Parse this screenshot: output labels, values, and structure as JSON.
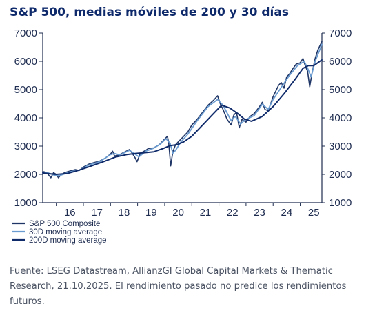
{
  "title": "S&P 500, medias móviles de 200 y 30 días",
  "source": "Fuente: LSEG Datastream, AllianzGI Global Capital Markets & Thematic Research, 21.10.2025. El rendimiento pasado no predice los rendimientos futuros.",
  "colors": {
    "title": "#0f2a6b",
    "composite": "#1f3566",
    "ma30": "#6a9bd0",
    "ma200": "#102b6a",
    "axis": "#1e2c50"
  },
  "chart_data": {
    "type": "line",
    "x_axis": {
      "range": [
        2015.5,
        2025.8
      ],
      "ticks": [
        2016,
        2017,
        2018,
        2019,
        2020,
        2021,
        2022,
        2023,
        2024,
        2025
      ],
      "tick_labels": [
        "16",
        "17",
        "18",
        "19",
        "20",
        "21",
        "22",
        "23",
        "24",
        "25"
      ]
    },
    "y_axis": {
      "range": [
        1000,
        7000
      ],
      "ticks": [
        1000,
        2000,
        3000,
        4000,
        5000,
        6000,
        7000
      ],
      "tick_labels": [
        "1000",
        "2000",
        "3000",
        "4000",
        "5000",
        "6000",
        "7000"
      ],
      "mirrored_right": true
    },
    "legend_position": "bottom-left",
    "series": [
      {
        "name": "S&P 500 Composite",
        "x": [
          2015.5,
          2015.6,
          2015.7,
          2015.8,
          2015.9,
          2016.0,
          2016.08,
          2016.15,
          2016.3,
          2016.5,
          2016.7,
          2016.85,
          2017.0,
          2017.2,
          2017.4,
          2017.6,
          2017.8,
          2018.0,
          2018.08,
          2018.15,
          2018.3,
          2018.5,
          2018.7,
          2018.8,
          2018.9,
          2018.98,
          2019.1,
          2019.3,
          2019.4,
          2019.6,
          2019.8,
          2020.0,
          2020.1,
          2020.15,
          2020.22,
          2020.3,
          2020.4,
          2020.5,
          2020.7,
          2020.85,
          2021.0,
          2021.2,
          2021.4,
          2021.6,
          2021.8,
          2021.95,
          2022.05,
          2022.15,
          2022.3,
          2022.45,
          2022.55,
          2022.65,
          2022.75,
          2022.85,
          2023.0,
          2023.15,
          2023.3,
          2023.5,
          2023.6,
          2023.7,
          2023.82,
          2024.0,
          2024.2,
          2024.3,
          2024.4,
          2024.5,
          2024.6,
          2024.7,
          2024.85,
          2025.0,
          2025.1,
          2025.2,
          2025.27,
          2025.35,
          2025.45,
          2025.55,
          2025.65,
          2025.8
        ],
        "values": [
          2100,
          2080,
          2000,
          1880,
          2060,
          2000,
          1880,
          1960,
          2060,
          2120,
          2170,
          2140,
          2260,
          2360,
          2420,
          2470,
          2570,
          2720,
          2820,
          2650,
          2680,
          2780,
          2880,
          2750,
          2600,
          2450,
          2750,
          2850,
          2920,
          2940,
          3050,
          3250,
          3350,
          3100,
          2300,
          2800,
          3050,
          3150,
          3350,
          3500,
          3750,
          3950,
          4200,
          4450,
          4620,
          4780,
          4500,
          4300,
          3950,
          3750,
          4100,
          4200,
          3650,
          3950,
          3850,
          4050,
          4150,
          4400,
          4550,
          4300,
          4250,
          4750,
          5150,
          5250,
          5050,
          5450,
          5550,
          5700,
          5900,
          5950,
          6100,
          5800,
          5650,
          5100,
          5650,
          6100,
          6400,
          6700
        ]
      },
      {
        "name": "30D moving average",
        "x": [
          2015.5,
          2015.7,
          2015.9,
          2016.1,
          2016.25,
          2016.5,
          2016.85,
          2017.2,
          2017.6,
          2018.0,
          2018.15,
          2018.35,
          2018.7,
          2018.9,
          2019.05,
          2019.3,
          2019.6,
          2019.85,
          2020.05,
          2020.2,
          2020.3,
          2020.4,
          2020.6,
          2020.85,
          2021.2,
          2021.6,
          2021.95,
          2022.15,
          2022.45,
          2022.6,
          2022.8,
          2022.95,
          2023.3,
          2023.6,
          2023.82,
          2024.0,
          2024.35,
          2024.6,
          2024.9,
          2025.15,
          2025.3,
          2025.4,
          2025.55,
          2025.8
        ],
        "values": [
          2070,
          2050,
          1980,
          1950,
          2000,
          2090,
          2150,
          2330,
          2450,
          2700,
          2740,
          2690,
          2850,
          2720,
          2620,
          2820,
          2930,
          3080,
          3260,
          3100,
          2750,
          2850,
          3150,
          3420,
          3900,
          4400,
          4650,
          4450,
          3900,
          4050,
          3780,
          3920,
          4080,
          4480,
          4300,
          4650,
          5150,
          5500,
          5850,
          6000,
          5700,
          5450,
          6000,
          6600
        ]
      },
      {
        "name": "200D moving average",
        "x": [
          2015.5,
          2015.8,
          2016.0,
          2016.4,
          2016.8,
          2017.3,
          2017.8,
          2018.2,
          2018.6,
          2018.9,
          2019.2,
          2019.6,
          2019.95,
          2020.2,
          2020.45,
          2020.7,
          2021.0,
          2021.4,
          2021.8,
          2022.1,
          2022.4,
          2022.7,
          2022.95,
          2023.2,
          2023.6,
          2024.0,
          2024.4,
          2024.8,
          2025.1,
          2025.3,
          2025.5,
          2025.8
        ],
        "values": [
          2050,
          2020,
          2000,
          2030,
          2140,
          2300,
          2470,
          2620,
          2700,
          2740,
          2760,
          2800,
          2920,
          3020,
          3050,
          3150,
          3350,
          3750,
          4150,
          4450,
          4350,
          4150,
          3950,
          3880,
          4050,
          4400,
          4850,
          5350,
          5750,
          5850,
          5850,
          6050
        ]
      }
    ]
  }
}
